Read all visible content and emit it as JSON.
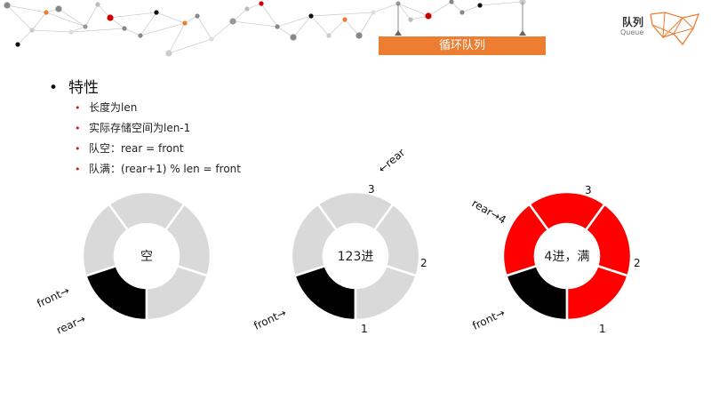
{
  "header": {
    "banner_label": "循环队列",
    "corner_title": "队列",
    "corner_subtitle": "Queue"
  },
  "colors": {
    "accent": "#ED7D31",
    "bullet": "#D01B1B",
    "empty_segment": "#D9D9D9",
    "filled_segment": "#FF0000",
    "front_segment": "#000000"
  },
  "section": {
    "heading": "特性",
    "bullets": [
      "长度为len",
      "实际存储空间为len-1",
      "队空：rear = front",
      "队满：(rear+1) % len = front"
    ]
  },
  "diagrams": [
    {
      "center_label": "空",
      "segments": [
        "black",
        "gray",
        "gray",
        "gray",
        "gray"
      ],
      "labels": [
        {
          "text": "front→",
          "rot": -25
        },
        {
          "text": "rear→",
          "rot": -25
        }
      ]
    },
    {
      "center_label": "123进",
      "segments": [
        "black",
        "gray",
        "gray",
        "gray",
        "gray"
      ],
      "labels": [
        {
          "text": "front→",
          "rot": -25
        },
        {
          "text": "1",
          "rot": 0
        },
        {
          "text": "2",
          "rot": 0
        },
        {
          "text": "3",
          "rot": 0
        },
        {
          "text": "←rear",
          "rot": -40
        }
      ]
    },
    {
      "center_label": "4进，满",
      "segments": [
        "black",
        "red",
        "red",
        "red",
        "red"
      ],
      "labels": [
        {
          "text": "front→",
          "rot": -25
        },
        {
          "text": "1",
          "rot": 0
        },
        {
          "text": "2",
          "rot": 0
        },
        {
          "text": "3",
          "rot": 0
        },
        {
          "text": "rear→4",
          "rot": 30
        }
      ]
    }
  ]
}
